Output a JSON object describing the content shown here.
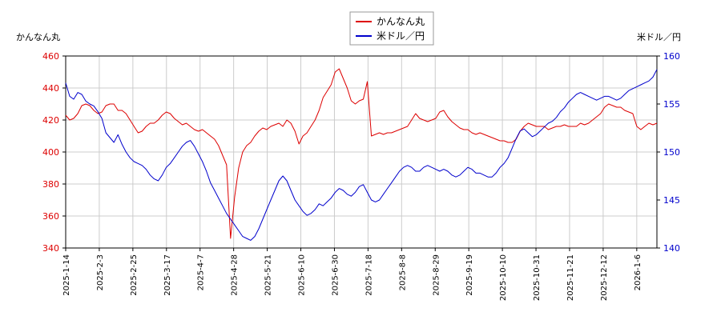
{
  "chart_data": {
    "type": "line",
    "title": "",
    "ylabel_left": "かんなん丸",
    "ylabel_right": "米ドル／円",
    "legend": {
      "placement": "top-center",
      "entries": [
        "かんなん丸",
        "米ドル／円"
      ]
    },
    "grid": true,
    "x_ticks": [
      "2025-1-14",
      "2025-2-3",
      "2025-2-25",
      "2025-3-17",
      "2025-4-7",
      "2025-4-28",
      "2025-5-21",
      "2025-6-10",
      "2025-6-30",
      "2025-7-18",
      "2025-8-8",
      "2025-8-29",
      "2025-9-19",
      "2025-10-10",
      "2025-10-31",
      "2025-11-21",
      "2025-12-12",
      "2026-1-6"
    ],
    "y_left": {
      "min": 340,
      "max": 460,
      "ticks": [
        340,
        360,
        380,
        400,
        420,
        440,
        460
      ]
    },
    "y_right": {
      "min": 140,
      "max": 160,
      "ticks": [
        140,
        145,
        150,
        155,
        160
      ]
    },
    "series": [
      {
        "name": "かんなん丸",
        "axis": "left",
        "color": "#dd0000",
        "values": [
          [
            0,
            423
          ],
          [
            1,
            420
          ],
          [
            2,
            421
          ],
          [
            3,
            424
          ],
          [
            4,
            429
          ],
          [
            5,
            430
          ],
          [
            6,
            429
          ],
          [
            7,
            426
          ],
          [
            8,
            424
          ],
          [
            9,
            425
          ],
          [
            10,
            429
          ],
          [
            11,
            430
          ],
          [
            12,
            430
          ],
          [
            13,
            426
          ],
          [
            14,
            426
          ],
          [
            15,
            424
          ],
          [
            16,
            420
          ],
          [
            17,
            416
          ],
          [
            18,
            412
          ],
          [
            19,
            413
          ],
          [
            20,
            416
          ],
          [
            21,
            418
          ],
          [
            22,
            418
          ],
          [
            23,
            420
          ],
          [
            24,
            423
          ],
          [
            25,
            425
          ],
          [
            26,
            424
          ],
          [
            27,
            421
          ],
          [
            28,
            419
          ],
          [
            29,
            417
          ],
          [
            30,
            418
          ],
          [
            31,
            416
          ],
          [
            32,
            414
          ],
          [
            33,
            413
          ],
          [
            34,
            414
          ],
          [
            35,
            412
          ],
          [
            36,
            410
          ],
          [
            37,
            408
          ],
          [
            38,
            404
          ],
          [
            39,
            398
          ],
          [
            40,
            392
          ],
          [
            41,
            346
          ],
          [
            42,
            372
          ],
          [
            43,
            390
          ],
          [
            44,
            400
          ],
          [
            45,
            404
          ],
          [
            46,
            406
          ],
          [
            47,
            410
          ],
          [
            48,
            413
          ],
          [
            49,
            415
          ],
          [
            50,
            414
          ],
          [
            51,
            416
          ],
          [
            52,
            417
          ],
          [
            53,
            418
          ],
          [
            54,
            416
          ],
          [
            55,
            420
          ],
          [
            56,
            418
          ],
          [
            57,
            413
          ],
          [
            58,
            405
          ],
          [
            59,
            410
          ],
          [
            60,
            412
          ],
          [
            61,
            416
          ],
          [
            62,
            420
          ],
          [
            63,
            426
          ],
          [
            64,
            434
          ],
          [
            65,
            438
          ],
          [
            66,
            442
          ],
          [
            67,
            450
          ],
          [
            68,
            452
          ],
          [
            69,
            446
          ],
          [
            70,
            440
          ],
          [
            71,
            432
          ],
          [
            72,
            430
          ],
          [
            73,
            432
          ],
          [
            74,
            433
          ],
          [
            75,
            444
          ],
          [
            76,
            410
          ],
          [
            77,
            411
          ],
          [
            78,
            412
          ],
          [
            79,
            411
          ],
          [
            80,
            412
          ],
          [
            81,
            412
          ],
          [
            82,
            413
          ],
          [
            83,
            414
          ],
          [
            84,
            415
          ],
          [
            85,
            416
          ],
          [
            86,
            420
          ],
          [
            87,
            424
          ],
          [
            88,
            421
          ],
          [
            89,
            420
          ],
          [
            90,
            419
          ],
          [
            91,
            420
          ],
          [
            92,
            421
          ],
          [
            93,
            425
          ],
          [
            94,
            426
          ],
          [
            95,
            422
          ],
          [
            96,
            419
          ],
          [
            97,
            417
          ],
          [
            98,
            415
          ],
          [
            99,
            414
          ],
          [
            100,
            414
          ],
          [
            101,
            412
          ],
          [
            102,
            411
          ],
          [
            103,
            412
          ],
          [
            104,
            411
          ],
          [
            105,
            410
          ],
          [
            106,
            409
          ],
          [
            107,
            408
          ],
          [
            108,
            407
          ],
          [
            109,
            407
          ],
          [
            110,
            406
          ],
          [
            111,
            406
          ],
          [
            112,
            408
          ],
          [
            113,
            413
          ],
          [
            114,
            416
          ],
          [
            115,
            418
          ],
          [
            116,
            417
          ],
          [
            117,
            416
          ],
          [
            118,
            416
          ],
          [
            119,
            416
          ],
          [
            120,
            414
          ],
          [
            121,
            415
          ],
          [
            122,
            416
          ],
          [
            123,
            416
          ],
          [
            124,
            417
          ],
          [
            125,
            416
          ],
          [
            126,
            416
          ],
          [
            127,
            416
          ],
          [
            128,
            418
          ],
          [
            129,
            417
          ],
          [
            130,
            418
          ],
          [
            131,
            420
          ],
          [
            132,
            422
          ],
          [
            133,
            424
          ],
          [
            134,
            428
          ],
          [
            135,
            430
          ],
          [
            136,
            429
          ],
          [
            137,
            428
          ],
          [
            138,
            428
          ],
          [
            139,
            426
          ],
          [
            140,
            425
          ],
          [
            141,
            424
          ],
          [
            142,
            416
          ],
          [
            143,
            414
          ],
          [
            144,
            416
          ],
          [
            145,
            418
          ],
          [
            146,
            417
          ],
          [
            147,
            418
          ]
        ]
      },
      {
        "name": "米ドル／円",
        "axis": "right",
        "color": "#0000cc",
        "values": [
          [
            0,
            157.2
          ],
          [
            1,
            155.8
          ],
          [
            2,
            155.5
          ],
          [
            3,
            156.2
          ],
          [
            4,
            156.0
          ],
          [
            5,
            155.3
          ],
          [
            6,
            155.0
          ],
          [
            7,
            154.8
          ],
          [
            8,
            154.2
          ],
          [
            9,
            153.5
          ],
          [
            10,
            152.0
          ],
          [
            11,
            151.5
          ],
          [
            12,
            151.0
          ],
          [
            13,
            151.8
          ],
          [
            14,
            150.8
          ],
          [
            15,
            150.0
          ],
          [
            16,
            149.4
          ],
          [
            17,
            149.0
          ],
          [
            18,
            148.8
          ],
          [
            19,
            148.6
          ],
          [
            20,
            148.2
          ],
          [
            21,
            147.6
          ],
          [
            22,
            147.2
          ],
          [
            23,
            147.0
          ],
          [
            24,
            147.6
          ],
          [
            25,
            148.4
          ],
          [
            26,
            148.8
          ],
          [
            27,
            149.4
          ],
          [
            28,
            150.0
          ],
          [
            29,
            150.6
          ],
          [
            30,
            151.0
          ],
          [
            31,
            151.2
          ],
          [
            32,
            150.6
          ],
          [
            33,
            149.8
          ],
          [
            34,
            149.0
          ],
          [
            35,
            148.0
          ],
          [
            36,
            146.8
          ],
          [
            37,
            146.0
          ],
          [
            38,
            145.2
          ],
          [
            39,
            144.4
          ],
          [
            40,
            143.6
          ],
          [
            41,
            143.0
          ],
          [
            42,
            142.4
          ],
          [
            43,
            141.8
          ],
          [
            44,
            141.2
          ],
          [
            45,
            141.0
          ],
          [
            46,
            140.8
          ],
          [
            47,
            141.2
          ],
          [
            48,
            142.0
          ],
          [
            49,
            143.0
          ],
          [
            50,
            144.0
          ],
          [
            51,
            145.0
          ],
          [
            52,
            146.0
          ],
          [
            53,
            147.0
          ],
          [
            54,
            147.5
          ],
          [
            55,
            147.0
          ],
          [
            56,
            146.0
          ],
          [
            57,
            145.0
          ],
          [
            58,
            144.4
          ],
          [
            59,
            143.8
          ],
          [
            60,
            143.4
          ],
          [
            61,
            143.6
          ],
          [
            62,
            144.0
          ],
          [
            63,
            144.6
          ],
          [
            64,
            144.4
          ],
          [
            65,
            144.8
          ],
          [
            66,
            145.2
          ],
          [
            67,
            145.8
          ],
          [
            68,
            146.2
          ],
          [
            69,
            146.0
          ],
          [
            70,
            145.6
          ],
          [
            71,
            145.4
          ],
          [
            72,
            145.8
          ],
          [
            73,
            146.4
          ],
          [
            74,
            146.6
          ],
          [
            75,
            145.8
          ],
          [
            76,
            145.0
          ],
          [
            77,
            144.8
          ],
          [
            78,
            145.0
          ],
          [
            79,
            145.6
          ],
          [
            80,
            146.2
          ],
          [
            81,
            146.8
          ],
          [
            82,
            147.4
          ],
          [
            83,
            148.0
          ],
          [
            84,
            148.4
          ],
          [
            85,
            148.6
          ],
          [
            86,
            148.4
          ],
          [
            87,
            148.0
          ],
          [
            88,
            148.0
          ],
          [
            89,
            148.4
          ],
          [
            90,
            148.6
          ],
          [
            91,
            148.4
          ],
          [
            92,
            148.2
          ],
          [
            93,
            148.0
          ],
          [
            94,
            148.2
          ],
          [
            95,
            148.0
          ],
          [
            96,
            147.6
          ],
          [
            97,
            147.4
          ],
          [
            98,
            147.6
          ],
          [
            99,
            148.0
          ],
          [
            100,
            148.4
          ],
          [
            101,
            148.2
          ],
          [
            102,
            147.8
          ],
          [
            103,
            147.8
          ],
          [
            104,
            147.6
          ],
          [
            105,
            147.4
          ],
          [
            106,
            147.4
          ],
          [
            107,
            147.8
          ],
          [
            108,
            148.4
          ],
          [
            109,
            148.8
          ],
          [
            110,
            149.4
          ],
          [
            111,
            150.4
          ],
          [
            112,
            151.4
          ],
          [
            113,
            152.2
          ],
          [
            114,
            152.4
          ],
          [
            115,
            152.0
          ],
          [
            116,
            151.6
          ],
          [
            117,
            151.8
          ],
          [
            118,
            152.2
          ],
          [
            119,
            152.6
          ],
          [
            120,
            153.0
          ],
          [
            121,
            153.2
          ],
          [
            122,
            153.6
          ],
          [
            123,
            154.2
          ],
          [
            124,
            154.6
          ],
          [
            125,
            155.2
          ],
          [
            126,
            155.6
          ],
          [
            127,
            156.0
          ],
          [
            128,
            156.2
          ],
          [
            129,
            156.0
          ],
          [
            130,
            155.8
          ],
          [
            131,
            155.6
          ],
          [
            132,
            155.4
          ],
          [
            133,
            155.6
          ],
          [
            134,
            155.8
          ],
          [
            135,
            155.8
          ],
          [
            136,
            155.6
          ],
          [
            137,
            155.4
          ],
          [
            138,
            155.6
          ],
          [
            139,
            156.0
          ],
          [
            140,
            156.4
          ],
          [
            141,
            156.6
          ],
          [
            142,
            156.8
          ],
          [
            143,
            157.0
          ],
          [
            144,
            157.2
          ],
          [
            145,
            157.4
          ],
          [
            146,
            157.8
          ],
          [
            147,
            158.6
          ]
        ]
      }
    ]
  }
}
